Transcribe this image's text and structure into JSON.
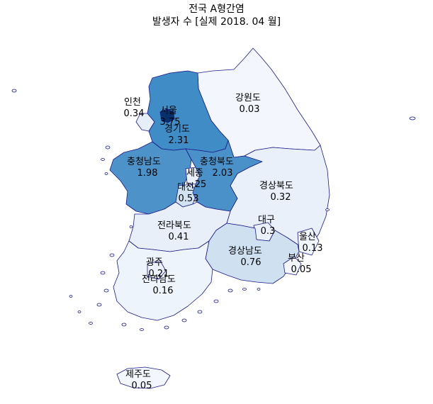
{
  "title": {
    "line1": "전국 A형간염",
    "line2": "발생자 수 [실제 2018. 04 월]"
  },
  "colors": {
    "outline": "#1a1a8a",
    "scale_low": "#f3f7fd",
    "scale_high": "#08306b"
  },
  "regions": [
    {
      "key": "seoul",
      "name": "서울",
      "value": "3.75"
    },
    {
      "key": "incheon",
      "name": "인천",
      "value": "0.34"
    },
    {
      "key": "gyeonggi",
      "name": "경기도",
      "value": "2.31"
    },
    {
      "key": "gangwon",
      "name": "강원도",
      "value": "0.03"
    },
    {
      "key": "chungnam",
      "name": "충청남도",
      "value": "1.98"
    },
    {
      "key": "chungbuk",
      "name": "충청북도",
      "value": "2.03"
    },
    {
      "key": "sejong",
      "name": "세종",
      "value": "25"
    },
    {
      "key": "daejeon",
      "name": "대전",
      "value": "0.53"
    },
    {
      "key": "gyeongbuk",
      "name": "경상북도",
      "value": "0.32"
    },
    {
      "key": "daegu",
      "name": "대구",
      "value": "0.3"
    },
    {
      "key": "jeonbuk",
      "name": "전라북도",
      "value": "0.41"
    },
    {
      "key": "ulsan",
      "name": "울산",
      "value": "0.13"
    },
    {
      "key": "gyeongnam",
      "name": "경상남도",
      "value": "0.76"
    },
    {
      "key": "busan",
      "name": "부산",
      "value": "0.05"
    },
    {
      "key": "gwangju",
      "name": "광주",
      "value": "0.21"
    },
    {
      "key": "jeonnam",
      "name": "전라남도",
      "value": "0.16"
    },
    {
      "key": "jeju",
      "name": "제주도",
      "value": "0.05"
    }
  ]
}
